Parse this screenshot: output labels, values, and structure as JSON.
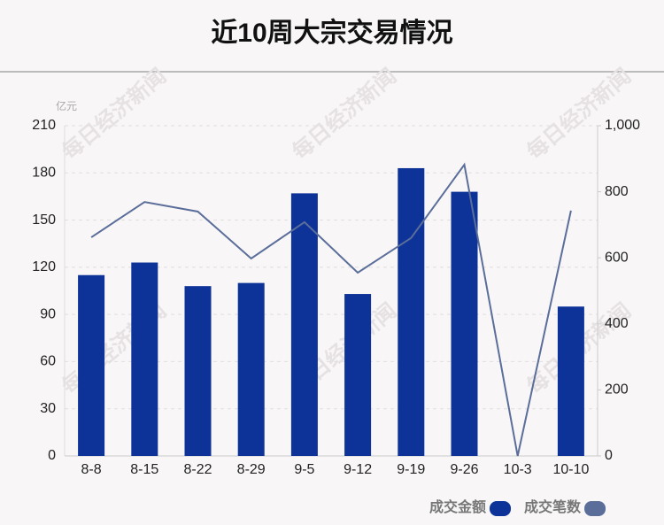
{
  "chart_data": {
    "type": "bar_line",
    "title": "近10周大宗交易情况",
    "y_unit": "亿元",
    "watermark": "每日经济新闻",
    "categories": [
      "8-8",
      "8-15",
      "8-22",
      "8-29",
      "9-5",
      "9-12",
      "9-19",
      "9-26",
      "10-3",
      "10-10"
    ],
    "series": [
      {
        "name": "成交金额",
        "type": "bar",
        "color": "#0d3399",
        "values": [
          115,
          123,
          108,
          110,
          167,
          103,
          183,
          168,
          0,
          95
        ]
      },
      {
        "name": "成交笔数",
        "type": "line",
        "axis": "y2",
        "color": "#5b6e9a",
        "values": [
          662,
          769,
          740,
          598,
          708,
          555,
          660,
          882,
          0,
          743
        ]
      }
    ],
    "ylim": [
      0,
      210
    ],
    "yticks": [
      0,
      30,
      60,
      90,
      120,
      150,
      180,
      210
    ],
    "y2lim": [
      0,
      1000
    ],
    "y2ticks": [
      0,
      200,
      400,
      600,
      800,
      {
        "value": 1000,
        "label": "1,000"
      }
    ],
    "grid": true,
    "legend": "bottom-right"
  }
}
